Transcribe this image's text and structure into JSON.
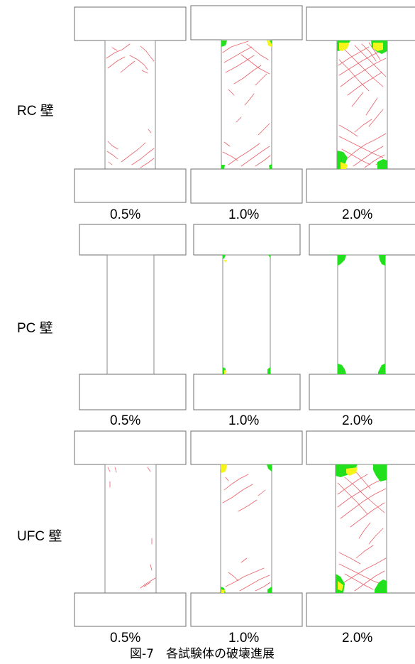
{
  "figure": {
    "caption": "図-7　各試験体の破壊進展",
    "colors": {
      "crack": "#e8626a",
      "damage_green": "#22e01e",
      "damage_yellow": "#f5f51a",
      "outline": "#6f6f6f"
    },
    "rows": [
      {
        "label": "RC 壁",
        "panels": [
          {
            "drift": "0.5%",
            "damage": "cracks-sparse"
          },
          {
            "drift": "1.0%",
            "damage": "cracks-moderate"
          },
          {
            "drift": "2.0%",
            "damage": "cracks-dense-crushing"
          }
        ]
      },
      {
        "label": "PC 壁",
        "panels": [
          {
            "drift": "0.5%",
            "damage": "none"
          },
          {
            "drift": "1.0%",
            "damage": "corner-crushing-minor"
          },
          {
            "drift": "2.0%",
            "damage": "corner-crushing"
          }
        ]
      },
      {
        "label": "UFC 壁",
        "panels": [
          {
            "drift": "0.5%",
            "damage": "cracks-sparse"
          },
          {
            "drift": "1.0%",
            "damage": "cracks-moderate"
          },
          {
            "drift": "2.0%",
            "damage": "cracks-dense-crushing"
          }
        ]
      }
    ]
  }
}
